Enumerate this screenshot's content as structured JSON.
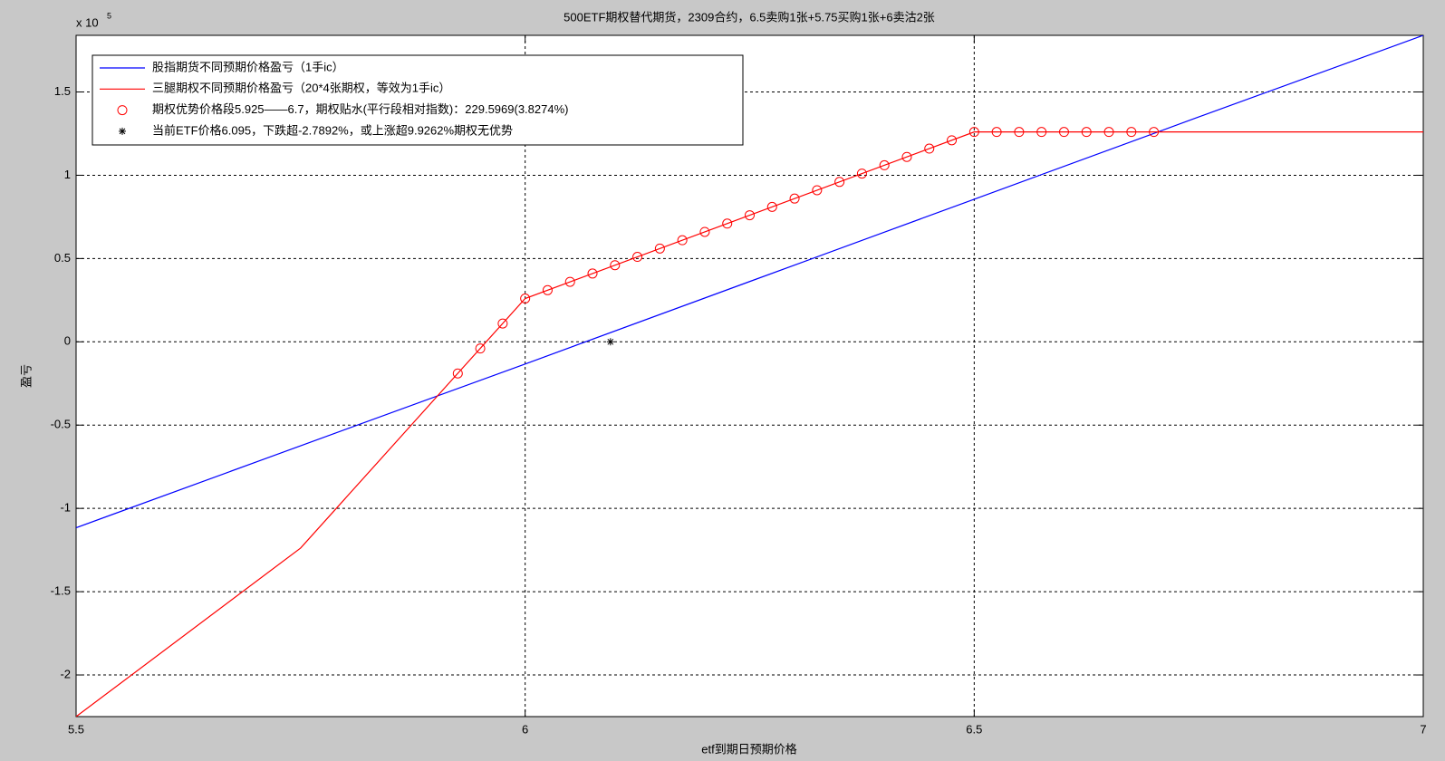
{
  "chart_data": {
    "type": "line",
    "title": "500ETF期权替代期货，2309合约，6.5卖购1张+5.75买购1张+6卖沽2张",
    "x_label": "etf到期日预期价格",
    "y_label": "盈亏",
    "y_multiplier": {
      "base": "x 10",
      "power": "5"
    },
    "xlim": [
      5.5,
      7
    ],
    "ylim": [
      -2.25,
      1.84
    ],
    "xticks": [
      5.5,
      6,
      6.5,
      7
    ],
    "yticks": [
      -2,
      -1.5,
      -1,
      -0.5,
      0,
      0.5,
      1,
      1.5
    ],
    "grid": true,
    "legend": "top-left",
    "series": [
      {
        "name": "股指期货不同预期价格盈亏（1手ic）",
        "color": "#0000ff",
        "marker": "none",
        "line": true,
        "x": [
          5.5,
          5.75,
          6,
          6.25,
          6.5,
          6.75,
          7
        ],
        "values": [
          -1.116,
          -0.624,
          -0.133,
          0.362,
          0.856,
          1.35,
          1.84
        ]
      },
      {
        "name": "三腿期权不同预期价格盈亏（20*4张期权，等效为1手ic）",
        "color": "#ff0000",
        "marker": "none",
        "line": true,
        "x": [
          5.5,
          5.75,
          6,
          6.5,
          7
        ],
        "values": [
          -2.25,
          -1.238,
          0.26,
          1.26,
          1.26
        ]
      },
      {
        "name": "期权优势价格段5.925——6.7，期权贴水(平行段相对指数)：229.5969(3.8274%)",
        "color": "#ff0000",
        "marker": "o",
        "line": false,
        "x": [
          5.925,
          5.95,
          5.975,
          6.0,
          6.025,
          6.05,
          6.075,
          6.1,
          6.125,
          6.15,
          6.175,
          6.2,
          6.225,
          6.25,
          6.275,
          6.3,
          6.325,
          6.35,
          6.375,
          6.4,
          6.425,
          6.45,
          6.475,
          6.5,
          6.525,
          6.55,
          6.575,
          6.6,
          6.625,
          6.65,
          6.675,
          6.7
        ],
        "values": [
          -0.19,
          -0.04,
          0.11,
          0.26,
          0.31,
          0.36,
          0.41,
          0.46,
          0.51,
          0.56,
          0.61,
          0.66,
          0.71,
          0.76,
          0.81,
          0.86,
          0.91,
          0.96,
          1.01,
          1.06,
          1.11,
          1.16,
          1.21,
          1.26,
          1.26,
          1.26,
          1.26,
          1.26,
          1.26,
          1.26,
          1.26,
          1.26
        ]
      },
      {
        "name": "当前ETF价格6.095，下跌超-2.7892%，或上涨超9.9262%期权无优势",
        "color": "#000000",
        "marker": "*",
        "line": false,
        "x": [
          6.095
        ],
        "values": [
          0
        ]
      }
    ]
  }
}
